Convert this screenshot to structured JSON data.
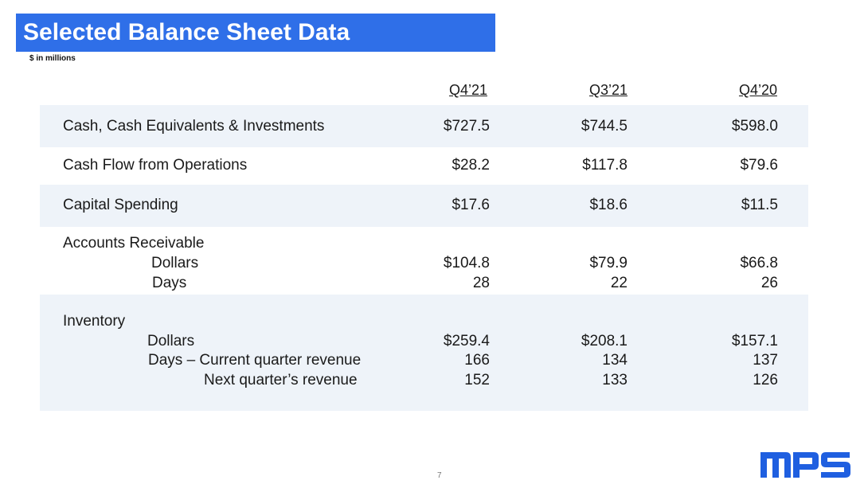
{
  "slide": {
    "title": "Selected Balance Sheet Data",
    "subtitle": "$ in millions",
    "page_number": "7",
    "logo_text": "MPS",
    "colors": {
      "title_bar": "#2f6fe8",
      "band": "#eef3f9",
      "logo": "#1f5fe0"
    }
  },
  "table": {
    "columns": [
      "Q4’21",
      "Q3’21",
      "Q4’20"
    ],
    "rows": {
      "cash": {
        "label": "Cash, Cash Equivalents & Investments",
        "values": [
          "$727.5",
          "$744.5",
          "$598.0"
        ]
      },
      "cfo": {
        "label": "Cash Flow from Operations",
        "values": [
          "$28.2",
          "$117.8",
          "$79.6"
        ]
      },
      "capex": {
        "label": "Capital Spending",
        "values": [
          "$17.6",
          "$18.6",
          "$11.5"
        ]
      },
      "ar": {
        "label": "Accounts Receivable",
        "dollars": {
          "label": "Dollars",
          "values": [
            "$104.8",
            "$79.9",
            "$66.8"
          ]
        },
        "days": {
          "label": "Days",
          "values": [
            "28",
            "22",
            "26"
          ]
        }
      },
      "inventory": {
        "label": "Inventory",
        "dollars": {
          "label": "Dollars",
          "values": [
            "$259.4",
            "$208.1",
            "$157.1"
          ]
        },
        "days_current": {
          "label": "Days – Current quarter revenue",
          "values": [
            "166",
            "134",
            "137"
          ]
        },
        "days_next": {
          "label": "Next quarter’s revenue",
          "values": [
            "152",
            "133",
            "126"
          ]
        }
      }
    }
  }
}
